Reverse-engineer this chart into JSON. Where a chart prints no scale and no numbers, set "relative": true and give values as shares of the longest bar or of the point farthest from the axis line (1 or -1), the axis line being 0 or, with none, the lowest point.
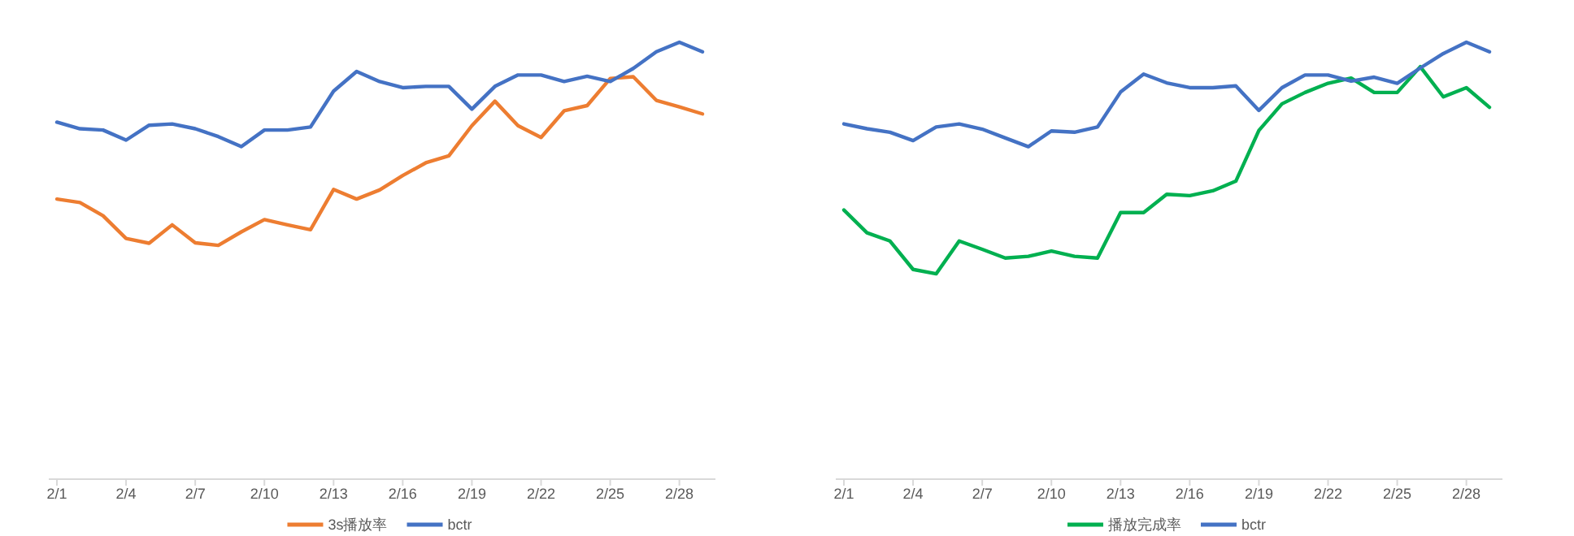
{
  "chart_data": [
    {
      "type": "line",
      "relative": true,
      "grid": false,
      "legend": "bottom",
      "categories": [
        "2/1",
        null,
        null,
        "2/4",
        null,
        null,
        "2/7",
        null,
        null,
        "2/10",
        null,
        null,
        "2/13",
        null,
        null,
        "2/16",
        null,
        null,
        "2/19",
        null,
        null,
        "2/22",
        null,
        null,
        "2/25",
        null,
        null,
        "2/28",
        null
      ],
      "series": [
        {
          "name": "3s播放率",
          "color": "#ed7d31",
          "values": [
            0.641,
            0.633,
            0.603,
            0.551,
            0.54,
            0.582,
            0.541,
            0.535,
            0.566,
            0.594,
            0.582,
            0.571,
            0.663,
            0.641,
            0.662,
            0.695,
            0.724,
            0.74,
            0.809,
            0.865,
            0.809,
            0.782,
            0.843,
            0.855,
            0.917,
            0.921,
            0.867,
            0.852,
            0.836
          ]
        },
        {
          "name": "bctr",
          "color": "#4472c4",
          "values": [
            0.817,
            0.802,
            0.799,
            0.776,
            0.81,
            0.813,
            0.802,
            0.784,
            0.761,
            0.799,
            0.799,
            0.806,
            0.888,
            0.933,
            0.91,
            0.896,
            0.899,
            0.899,
            0.847,
            0.899,
            0.925,
            0.925,
            0.91,
            0.922,
            0.91,
            0.94,
            0.978,
            1,
            0.978
          ]
        }
      ]
    },
    {
      "type": "line",
      "relative": true,
      "grid": false,
      "legend": "bottom",
      "categories": [
        "2/1",
        null,
        null,
        "2/4",
        null,
        null,
        "2/7",
        null,
        null,
        "2/10",
        null,
        null,
        "2/13",
        null,
        null,
        "2/16",
        null,
        null,
        "2/19",
        null,
        null,
        "2/22",
        null,
        null,
        "2/25",
        null,
        null,
        "2/28",
        null
      ],
      "series": [
        {
          "name": "播放完成率",
          "color": "#00b050",
          "values": [
            0.616,
            0.564,
            0.545,
            0.48,
            0.47,
            0.545,
            0.526,
            0.506,
            0.51,
            0.522,
            0.51,
            0.506,
            0.61,
            0.61,
            0.652,
            0.649,
            0.66,
            0.682,
            0.798,
            0.859,
            0.885,
            0.906,
            0.918,
            0.885,
            0.885,
            0.944,
            0.875,
            0.896,
            0.851
          ]
        },
        {
          "name": "bctr",
          "color": "#4472c4",
          "values": [
            0.813,
            0.802,
            0.794,
            0.775,
            0.806,
            0.813,
            0.801,
            0.781,
            0.761,
            0.797,
            0.794,
            0.806,
            0.886,
            0.927,
            0.907,
            0.896,
            0.896,
            0.9,
            0.844,
            0.896,
            0.925,
            0.925,
            0.911,
            0.92,
            0.906,
            0.941,
            0.974,
            1,
            0.978
          ]
        }
      ]
    }
  ]
}
